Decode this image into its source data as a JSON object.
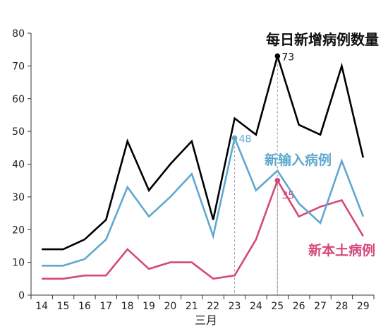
{
  "chart_data": {
    "type": "line",
    "title": "每日新增病例数量",
    "xlabel": "三月",
    "ylabel": "",
    "x": [
      14,
      15,
      16,
      17,
      18,
      19,
      20,
      21,
      22,
      23,
      24,
      25,
      26,
      27,
      28,
      29
    ],
    "ylim": [
      0,
      80
    ],
    "yticks": [
      0,
      10,
      20,
      30,
      40,
      50,
      60,
      70,
      80
    ],
    "grid": false,
    "series": [
      {
        "name": "",
        "color": "#000000",
        "values": [
          14,
          14,
          17,
          23,
          47,
          32,
          40,
          47,
          23,
          54,
          49,
          73,
          52,
          49,
          70,
          42
        ]
      },
      {
        "name": "新输入病例",
        "color": "#5fa8cf",
        "values": [
          9,
          9,
          11,
          17,
          33,
          24,
          30,
          37,
          18,
          48,
          32,
          38,
          28,
          22,
          41,
          24
        ]
      },
      {
        "name": "新本土病例",
        "color": "#d4477a",
        "values": [
          5,
          5,
          6,
          6,
          14,
          8,
          10,
          10,
          5,
          6,
          17,
          35,
          24,
          27,
          29,
          18
        ]
      }
    ],
    "annotations": [
      {
        "series": 0,
        "x": 25,
        "label": "73",
        "color": "#111111"
      },
      {
        "series": 1,
        "x": 23,
        "label": "48",
        "color": "#5fa8cf"
      },
      {
        "series": 2,
        "x": 25,
        "label": "35",
        "color": "#d4477a"
      }
    ]
  }
}
